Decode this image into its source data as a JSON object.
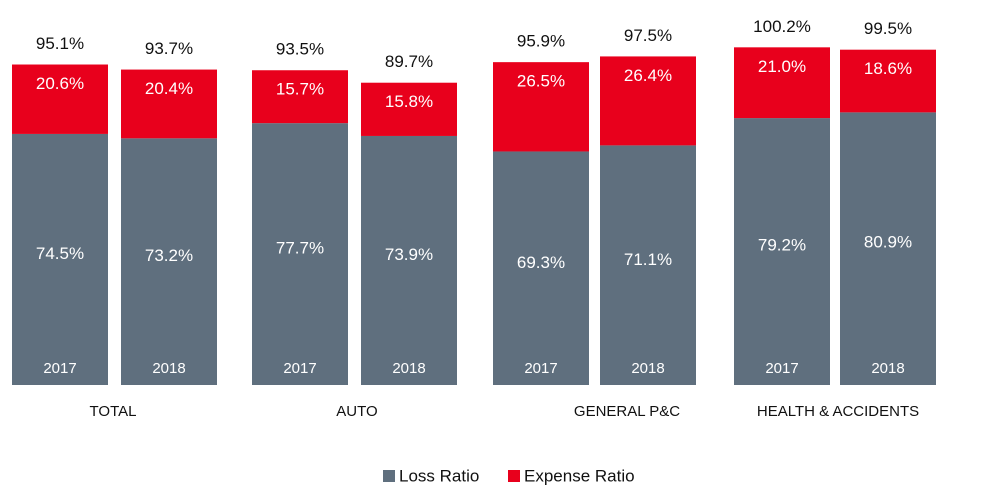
{
  "chart_data": {
    "type": "bar",
    "stacked": true,
    "categories": [
      "2017",
      "2018",
      "2017",
      "2018",
      "2017",
      "2018",
      "2017",
      "2018"
    ],
    "groups": [
      "TOTAL",
      "AUTO",
      "GENERAL P&C",
      "HEALTH & ACCIDENTS"
    ],
    "series": [
      {
        "name": "Loss Ratio",
        "color": "#5f6f7e",
        "values": [
          74.5,
          73.2,
          77.7,
          73.9,
          69.3,
          71.1,
          79.2,
          80.9
        ],
        "value_labels": [
          "74.5%",
          "73.2%",
          "77.7%",
          "73.9%",
          "69.3%",
          "71.1%",
          "79.2%",
          "80.9%"
        ]
      },
      {
        "name": "Expense Ratio",
        "color": "#e8001c",
        "values": [
          20.6,
          20.4,
          15.7,
          15.8,
          26.5,
          26.4,
          21.0,
          18.6
        ],
        "value_labels": [
          "20.6%",
          "20.4%",
          "15.7%",
          "15.8%",
          "26.5%",
          "26.4%",
          "21.0%",
          "18.6%"
        ]
      }
    ],
    "totals": [
      95.1,
      93.7,
      93.5,
      89.7,
      95.9,
      97.5,
      100.2,
      99.5
    ],
    "total_labels": [
      "95.1%",
      "93.7%",
      "93.5%",
      "89.7%",
      "95.9%",
      "97.5%",
      "100.2%",
      "99.5%"
    ]
  }
}
